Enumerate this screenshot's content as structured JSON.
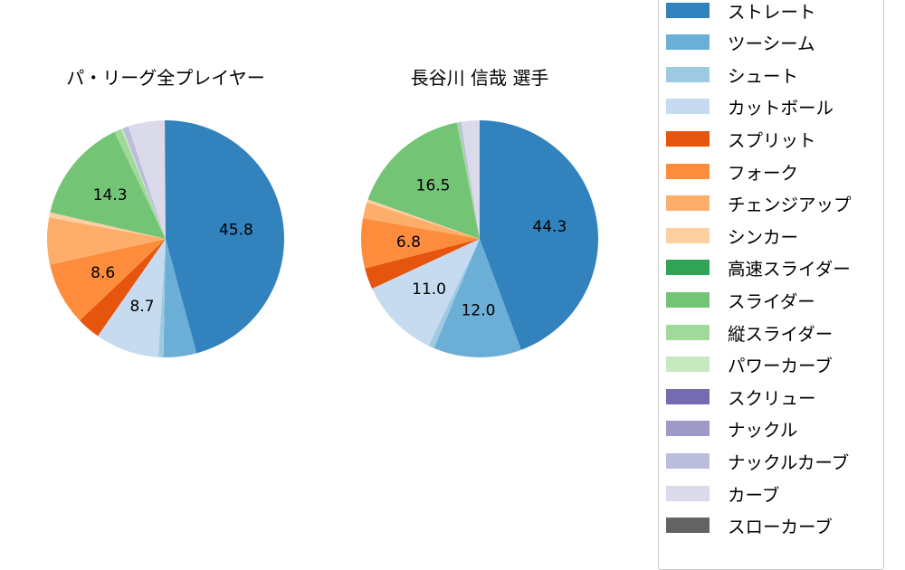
{
  "chart_data": [
    {
      "type": "pie",
      "title": "パ・リーグ全プレイヤー",
      "start_angle": 90,
      "direction": "clockwise",
      "slices": [
        {
          "label": "ストレート",
          "value": 45.8,
          "color": "#3182bd",
          "show_label": true
        },
        {
          "label": "ツーシーム",
          "value": 4.5,
          "color": "#6baed6",
          "show_label": false
        },
        {
          "label": "シュート",
          "value": 0.7,
          "color": "#9ecae1",
          "show_label": false
        },
        {
          "label": "カットボール",
          "value": 8.7,
          "color": "#c6dbef",
          "show_label": true
        },
        {
          "label": "スプリット",
          "value": 3.2,
          "color": "#e6550d",
          "show_label": false
        },
        {
          "label": "フォーク",
          "value": 8.6,
          "color": "#fd8d3c",
          "show_label": true
        },
        {
          "label": "チェンジアップ",
          "value": 6.4,
          "color": "#fdae6b",
          "show_label": false
        },
        {
          "label": "シンカー",
          "value": 0.7,
          "color": "#fdd0a2",
          "show_label": false
        },
        {
          "label": "スライダー",
          "value": 14.3,
          "color": "#74c476",
          "show_label": true
        },
        {
          "label": "縦スライダー",
          "value": 1.0,
          "color": "#a1d99b",
          "show_label": false
        },
        {
          "label": "パワーカーブ",
          "value": 0.2,
          "color": "#c7e9c0",
          "show_label": false
        },
        {
          "label": "ナックルカーブ",
          "value": 0.8,
          "color": "#bcbddc",
          "show_label": false
        },
        {
          "label": "カーブ",
          "value": 5.0,
          "color": "#dadaeb",
          "show_label": false
        },
        {
          "label": "スローカーブ",
          "value": 0.1,
          "color": "#636363",
          "show_label": false
        }
      ]
    },
    {
      "type": "pie",
      "title": "長谷川 信哉  選手",
      "start_angle": 90,
      "direction": "clockwise",
      "slices": [
        {
          "label": "ストレート",
          "value": 44.3,
          "color": "#3182bd",
          "show_label": true
        },
        {
          "label": "ツーシーム",
          "value": 12.0,
          "color": "#6baed6",
          "show_label": true
        },
        {
          "label": "シュート",
          "value": 0.8,
          "color": "#9ecae1",
          "show_label": false
        },
        {
          "label": "カットボール",
          "value": 11.0,
          "color": "#c6dbef",
          "show_label": true
        },
        {
          "label": "スプリット",
          "value": 2.9,
          "color": "#e6550d",
          "show_label": false
        },
        {
          "label": "フォーク",
          "value": 6.8,
          "color": "#fd8d3c",
          "show_label": true
        },
        {
          "label": "チェンジアップ",
          "value": 2.2,
          "color": "#fdae6b",
          "show_label": false
        },
        {
          "label": "シンカー",
          "value": 0.4,
          "color": "#fdd0a2",
          "show_label": false
        },
        {
          "label": "スライダー",
          "value": 16.5,
          "color": "#74c476",
          "show_label": true
        },
        {
          "label": "縦スライダー",
          "value": 0.3,
          "color": "#a1d99b",
          "show_label": false
        },
        {
          "label": "ナックルカーブ",
          "value": 0.3,
          "color": "#bcbddc",
          "show_label": false
        },
        {
          "label": "カーブ",
          "value": 2.5,
          "color": "#dadaeb",
          "show_label": false
        }
      ]
    }
  ],
  "legend": {
    "items": [
      {
        "label": "ストレート",
        "color": "#3182bd"
      },
      {
        "label": "ツーシーム",
        "color": "#6baed6"
      },
      {
        "label": "シュート",
        "color": "#9ecae1"
      },
      {
        "label": "カットボール",
        "color": "#c6dbef"
      },
      {
        "label": "スプリット",
        "color": "#e6550d"
      },
      {
        "label": "フォーク",
        "color": "#fd8d3c"
      },
      {
        "label": "チェンジアップ",
        "color": "#fdae6b"
      },
      {
        "label": "シンカー",
        "color": "#fdd0a2"
      },
      {
        "label": "高速スライダー",
        "color": "#31a354"
      },
      {
        "label": "スライダー",
        "color": "#74c476"
      },
      {
        "label": "縦スライダー",
        "color": "#a1d99b"
      },
      {
        "label": "パワーカーブ",
        "color": "#c7e9c0"
      },
      {
        "label": "スクリュー",
        "color": "#756bb1"
      },
      {
        "label": "ナックル",
        "color": "#9e9ac8"
      },
      {
        "label": "ナックルカーブ",
        "color": "#bcbddc"
      },
      {
        "label": "カーブ",
        "color": "#dadaeb"
      },
      {
        "label": "スローカーブ",
        "color": "#636363"
      }
    ]
  }
}
